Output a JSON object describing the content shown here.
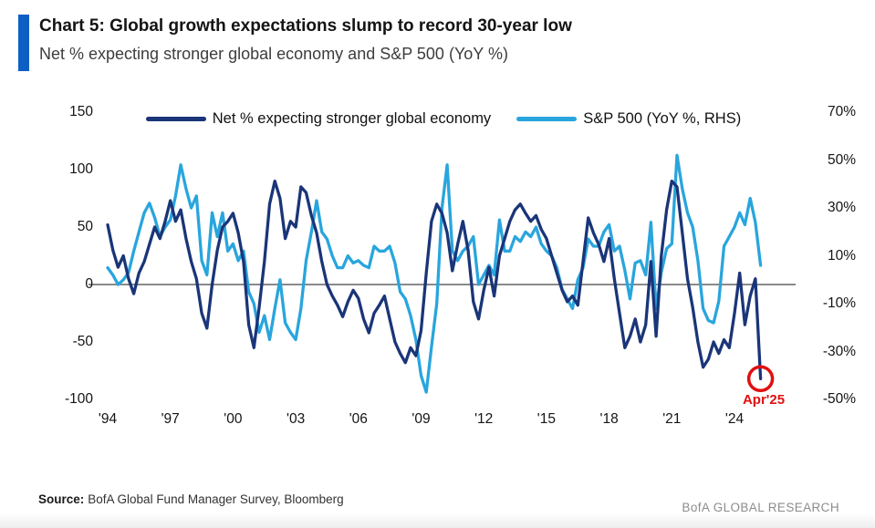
{
  "header": {
    "title": "Chart 5: Global growth expectations slump to record 30-year low",
    "subtitle": "Net % expecting stronger global economy and S&P 500 (YoY %)",
    "accent_color": "#0e5fc4"
  },
  "legend": [
    {
      "label": "Net % expecting stronger global economy",
      "color": "#1a3578"
    },
    {
      "label": "S&P 500 (YoY %, RHS)",
      "color": "#29a5dd"
    }
  ],
  "annotation": {
    "label": "Apr'25",
    "color": "#e01010"
  },
  "footer": {
    "source_label": "Source:",
    "source_text": "BofA Global Fund Manager Survey, Bloomberg",
    "brand": "BofA GLOBAL RESEARCH"
  },
  "chart_data": {
    "type": "line",
    "title": "Net % expecting stronger global economy and S&P 500 (YoY %)",
    "grid": false,
    "legend_position": "top",
    "zero_line": true,
    "x_start": 1994.0,
    "x_step": 0.25,
    "x_count": 126,
    "x_end": 2025.25,
    "x_tick_labels": [
      "'94",
      "'97",
      "'00",
      "'03",
      "'06",
      "'09",
      "'12",
      "'15",
      "'18",
      "'21",
      "'24"
    ],
    "left_axis": {
      "ticks": [
        150,
        100,
        50,
        0,
        -50,
        -100
      ],
      "range": [
        -100,
        150
      ],
      "label": "Net % expecting stronger global economy"
    },
    "right_axis": {
      "tick_labels": [
        "70%",
        "50%",
        "30%",
        "10%",
        "-10%",
        "-30%",
        "-50%"
      ],
      "range_pct": [
        -50,
        70
      ],
      "label": "S&P 500 YoY %"
    },
    "highlight": {
      "x": 2025.25,
      "value": -82,
      "label": "Apr'25",
      "series": "Net % expecting stronger global economy"
    },
    "series": [
      {
        "id": "net-expectations-line",
        "name": "Net % expecting stronger global economy",
        "axis": "left",
        "color": "#1a3578",
        "values": [
          52,
          30,
          15,
          25,
          5,
          -8,
          10,
          20,
          35,
          50,
          40,
          55,
          73,
          55,
          65,
          40,
          20,
          5,
          -25,
          -38,
          0,
          30,
          50,
          55,
          62,
          45,
          20,
          -35,
          -55,
          -20,
          20,
          70,
          90,
          75,
          40,
          55,
          50,
          85,
          80,
          60,
          45,
          20,
          0,
          -10,
          -18,
          -28,
          -15,
          -5,
          -12,
          -30,
          -42,
          -25,
          -18,
          -10,
          -30,
          -50,
          -60,
          -68,
          -55,
          -62,
          -40,
          10,
          55,
          70,
          62,
          45,
          12,
          35,
          55,
          30,
          -15,
          -30,
          -5,
          15,
          -10,
          25,
          40,
          55,
          65,
          70,
          62,
          55,
          60,
          48,
          40,
          25,
          10,
          -5,
          -15,
          -10,
          -18,
          20,
          58,
          45,
          35,
          20,
          40,
          5,
          -25,
          -55,
          -45,
          -30,
          -50,
          -35,
          20,
          -45,
          25,
          65,
          90,
          85,
          45,
          5,
          -20,
          -50,
          -72,
          -65,
          -50,
          -60,
          -48,
          -55,
          -25,
          10,
          -35,
          -10,
          5,
          -82
        ]
      },
      {
        "id": "sp500-line",
        "name": "S&P 500 (YoY %, RHS)",
        "axis": "right",
        "color": "#29a5dd",
        "values": [
          5,
          2,
          -2,
          0,
          3,
          12,
          20,
          28,
          32,
          26,
          18,
          22,
          25,
          35,
          48,
          38,
          30,
          35,
          8,
          2,
          28,
          18,
          28,
          12,
          15,
          8,
          12,
          -5,
          -10,
          -22,
          -15,
          -25,
          -12,
          0,
          -18,
          -22,
          -25,
          -12,
          8,
          20,
          33,
          20,
          17,
          10,
          5,
          5,
          10,
          7,
          8,
          6,
          5,
          14,
          12,
          12,
          14,
          7,
          -5,
          -8,
          -15,
          -25,
          -40,
          -47,
          -28,
          -10,
          30,
          48,
          12,
          8,
          12,
          14,
          18,
          -2,
          2,
          6,
          2,
          25,
          12,
          12,
          18,
          16,
          20,
          18,
          22,
          15,
          12,
          10,
          5,
          -4,
          -8,
          -12,
          0,
          5,
          17,
          14,
          14,
          20,
          23,
          12,
          14,
          4,
          -8,
          7,
          8,
          2,
          24,
          -12,
          3,
          13,
          15,
          52,
          38,
          28,
          22,
          8,
          -12,
          -17,
          -18,
          -9,
          14,
          18,
          22,
          28,
          23,
          34,
          24,
          6
        ]
      }
    ]
  }
}
